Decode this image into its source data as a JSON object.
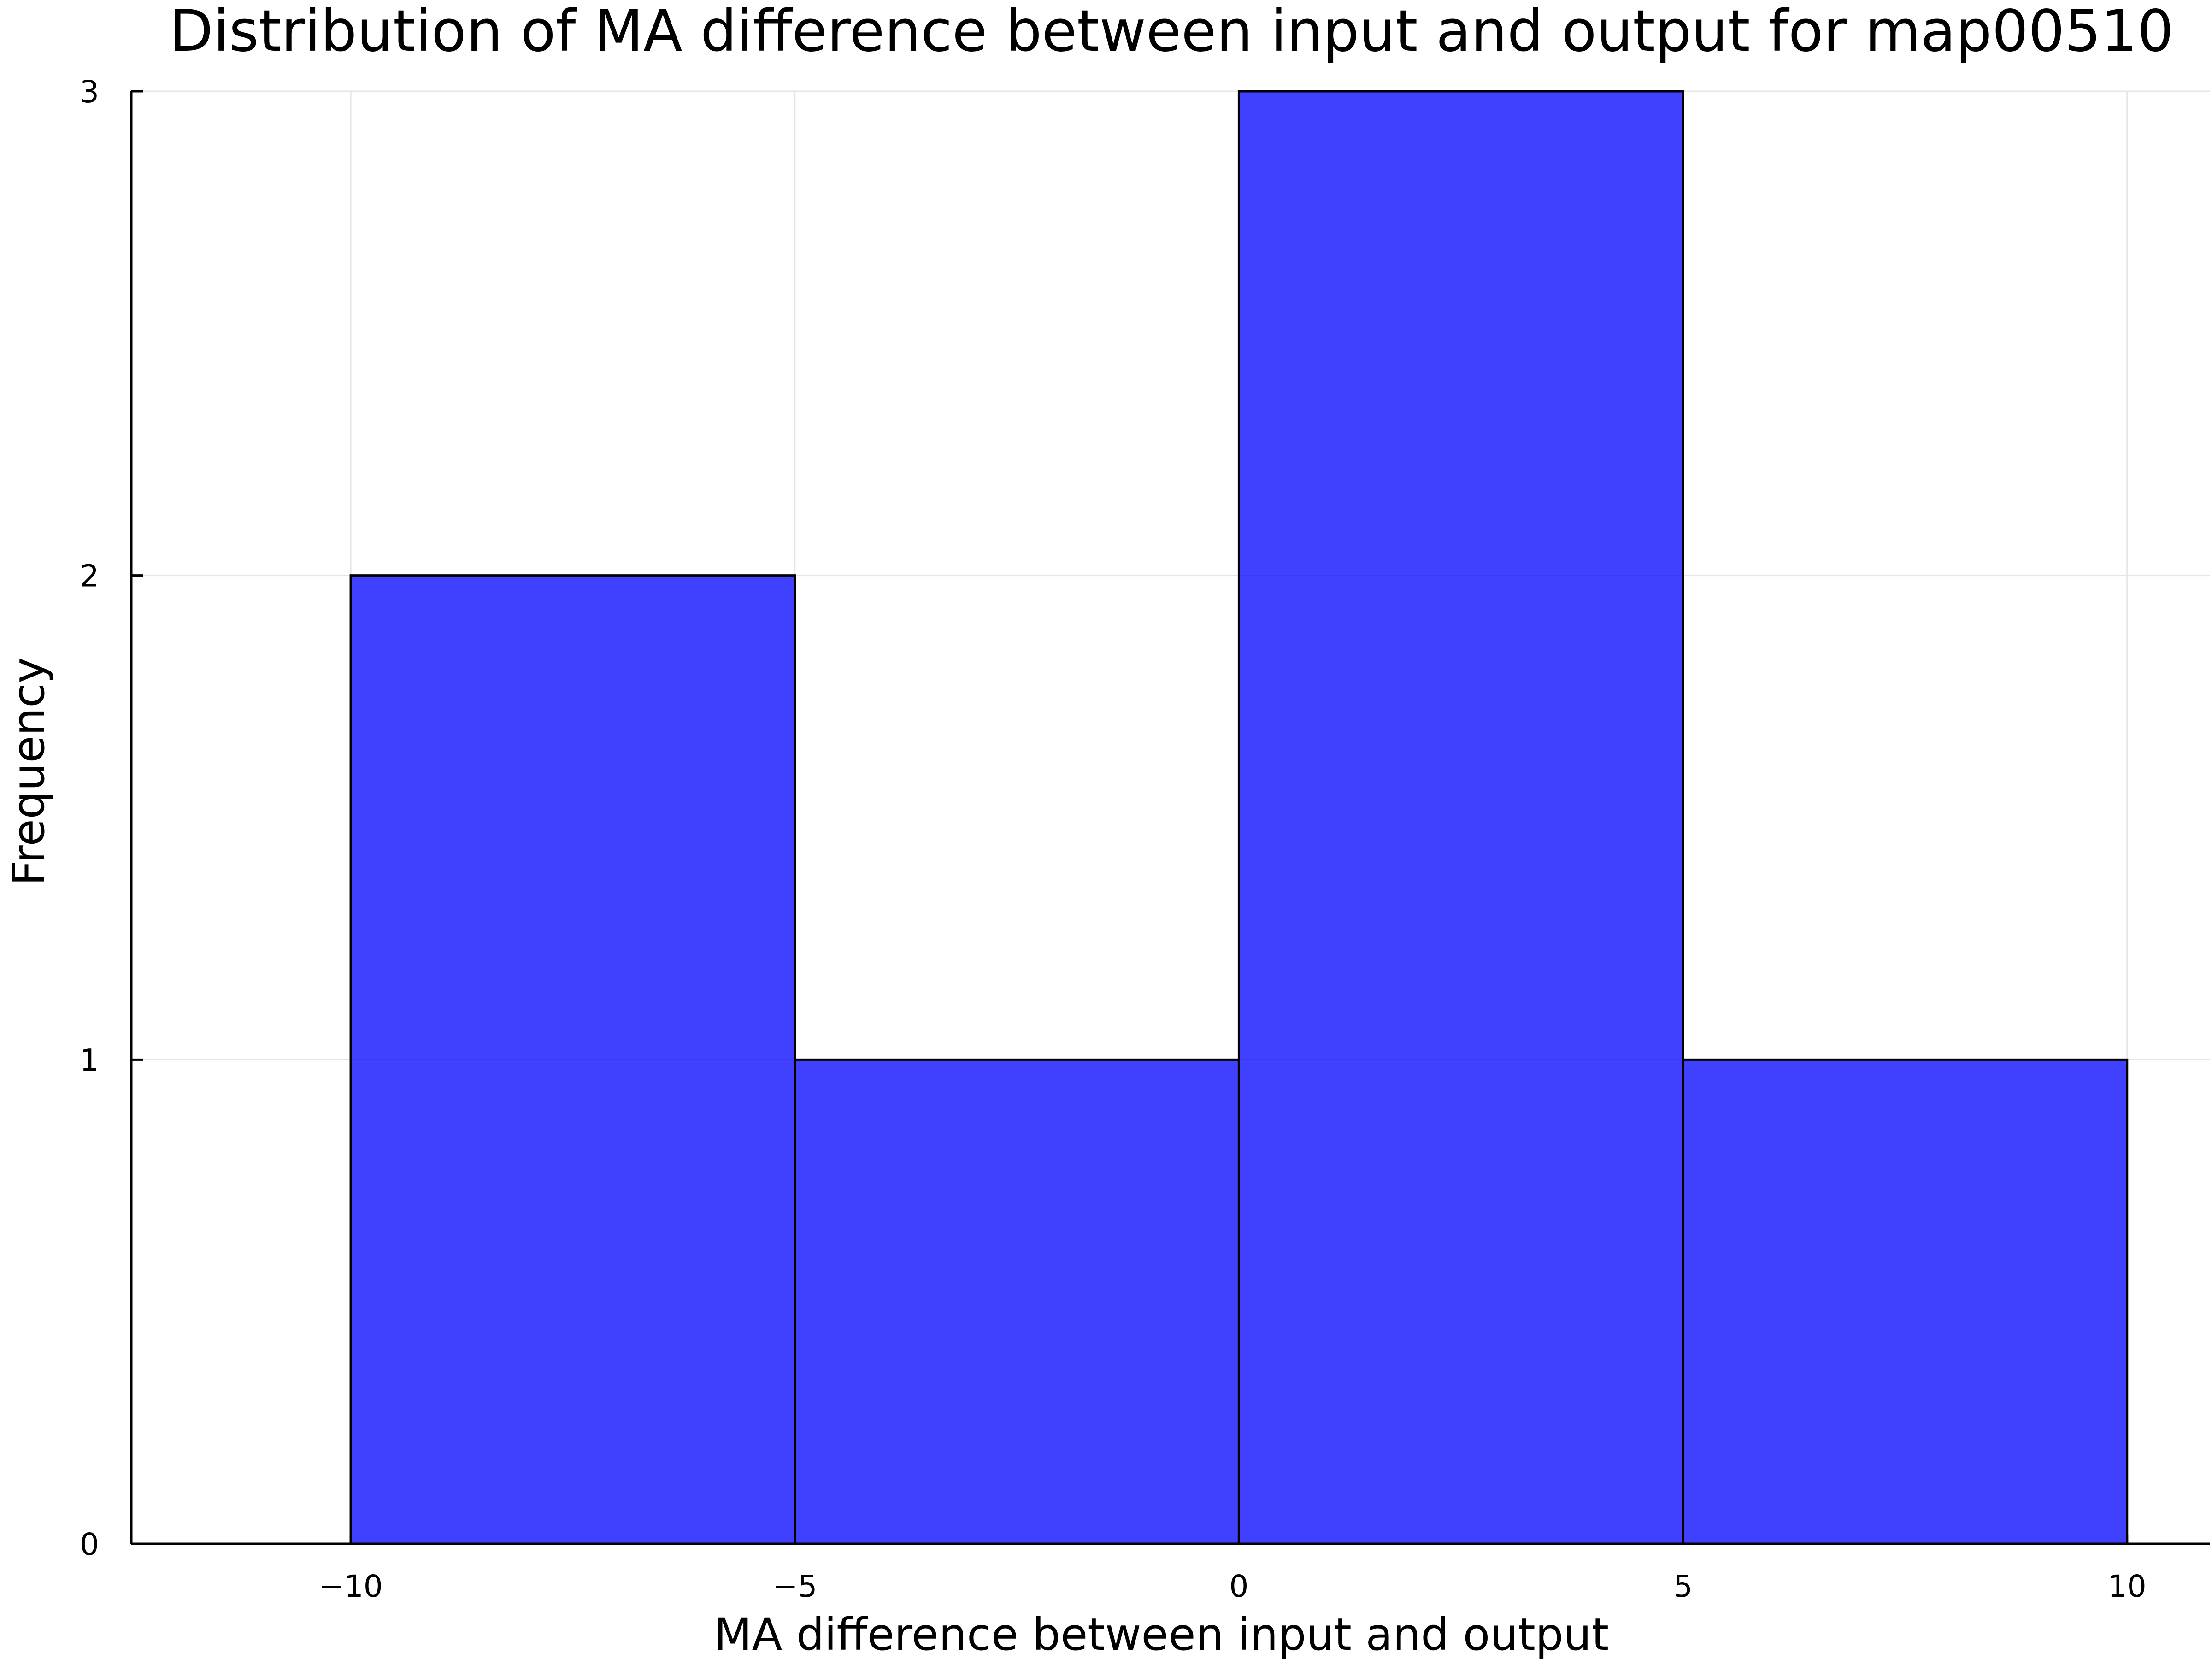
{
  "chart_data": {
    "type": "bar",
    "subtype": "histogram",
    "title": "Distribution of MA difference between input and output for map00510",
    "xlabel": "MA difference between input and output",
    "ylabel": "Frequency",
    "bins": [
      {
        "start": -10,
        "end": -5,
        "count": 2
      },
      {
        "start": -5,
        "end": 0,
        "count": 1
      },
      {
        "start": 0,
        "end": 5,
        "count": 3
      },
      {
        "start": 5,
        "end": 10,
        "count": 1
      }
    ],
    "x_ticks": [
      {
        "value": -10,
        "label": "−10"
      },
      {
        "value": -5,
        "label": "−5"
      },
      {
        "value": 0,
        "label": "0"
      },
      {
        "value": 5,
        "label": "5"
      },
      {
        "value": 10,
        "label": "10"
      }
    ],
    "y_ticks": [
      {
        "value": 0,
        "label": "0"
      },
      {
        "value": 1,
        "label": "1"
      },
      {
        "value": 2,
        "label": "2"
      },
      {
        "value": 3,
        "label": "3"
      }
    ],
    "xlim": [
      -12.4,
      22.4
    ],
    "ylim": [
      0,
      3
    ],
    "grid": true,
    "bar_color": "#0000ff",
    "bar_opacity": 0.75,
    "legend": "none"
  }
}
